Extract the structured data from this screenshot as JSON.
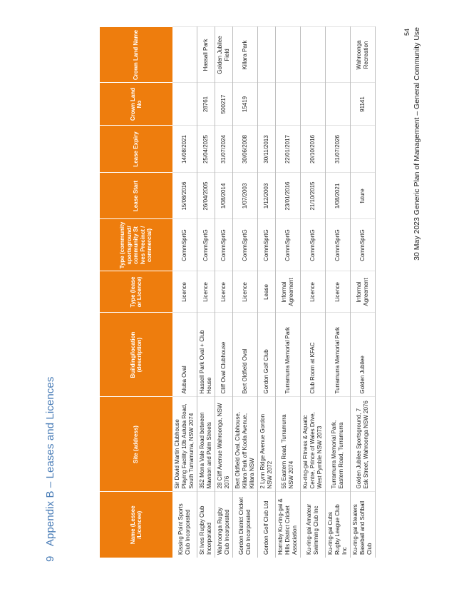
{
  "heading": {
    "number": "9",
    "title": "Appendix B – Leases and Licences"
  },
  "table": {
    "headers": [
      "Name (Lessee /Licencee)",
      "Site (address)",
      "Building/location (description)",
      "Type (lease or Licence)",
      "Type (community sportsground/ community St Ives Precinct / commercial)",
      "Lease Start",
      "Lease Expiry",
      "Crown Land No",
      "Crown Land Name"
    ],
    "rows": [
      [
        "Kissing Point Sports Club Incorporated",
        "Sir David Martin Clubhouse Playing Facility 10b Auluba Road, South Turramurra, NSW 2074",
        "Aluba Oval",
        "Licence",
        "CommSprtG",
        "15/08/2016",
        "14/08/2021",
        "",
        ""
      ],
      [
        "St Ives Rugby Club Incorporated",
        "352 Mona Vale Road between Mawson and Palm Streets",
        "Hassell Park Oval + Club House",
        "Licence",
        "CommSprtG",
        "26/04/2005",
        "25/04/2025",
        "28761",
        "Hassall Park"
      ],
      [
        "Wahroonga Rugby Club Incorporated",
        "28 Cliff Avenue Wahroonga, NSW 2076",
        "Cliff Oval Clubhouse",
        "Licence",
        "CommSprtG",
        "1/08/2014",
        "31/07/2024",
        "500217",
        "Golden Jubilee Field"
      ],
      [
        "Gordon District Cricket Club Incorporated",
        "Bert Oldfield Oval, Clubhouse, Killara Park off Koola Avenue, Killara NSW",
        "Bert Oldfield Oval",
        "Licence",
        "CommSprtG",
        "1/07/2003",
        "30/06/2008",
        "15419",
        "Killara Park"
      ],
      [
        "Gordon Golf Club Ltd",
        "2 Lynn Ridge Avenue Gordon NSW 2072",
        "Gordon Golf Club",
        "Lease",
        "CommSprtG",
        "1/12/2003",
        "30/11/2013",
        "",
        ""
      ],
      [
        "Hornsby Ku-ring-gai & Hills District Cricket Association",
        "55 Eastern Road, Turramurra NSW 2074",
        "Turramurra Memorial Park",
        "Informal Agreement",
        "CommSprtG",
        "23/01/2016",
        "22/01/2017",
        "",
        ""
      ],
      [
        "Ku-ring-gai Amateur Swimming Club Inc",
        "Ku-ring-gai Fitness & Aquatic Centre, Prince of Wales Drive, West Pymble NSW 2073",
        "Club Room at KFAC",
        "Licence",
        "CommSprtG",
        "21/10/2015",
        "20/10/2016",
        "",
        ""
      ],
      [
        "Ku-ring-gai Cubs Rugby League Club Inc",
        "Turramurra Memorial Park, Eastern Road, Turramurra",
        "Turramurra Memorial Park",
        "Licence",
        "CommSprtG",
        "1/08/2021",
        "31/07/2026",
        "",
        ""
      ],
      [
        "Ku-ring-gai Stealers Baseball and Softball Club",
        "Golden Jubilee Sportsground, 7 Esk Street, Wahroonga NSW 2076",
        "Golden Jubilee",
        "Informal Agreement",
        "CommSprtG",
        "future",
        "",
        "91141",
        "Wahroonga Recreation"
      ]
    ]
  },
  "footer": {
    "page_number": "54",
    "text": "30 May 2023   Generic Plan of Management – General Community Use"
  }
}
